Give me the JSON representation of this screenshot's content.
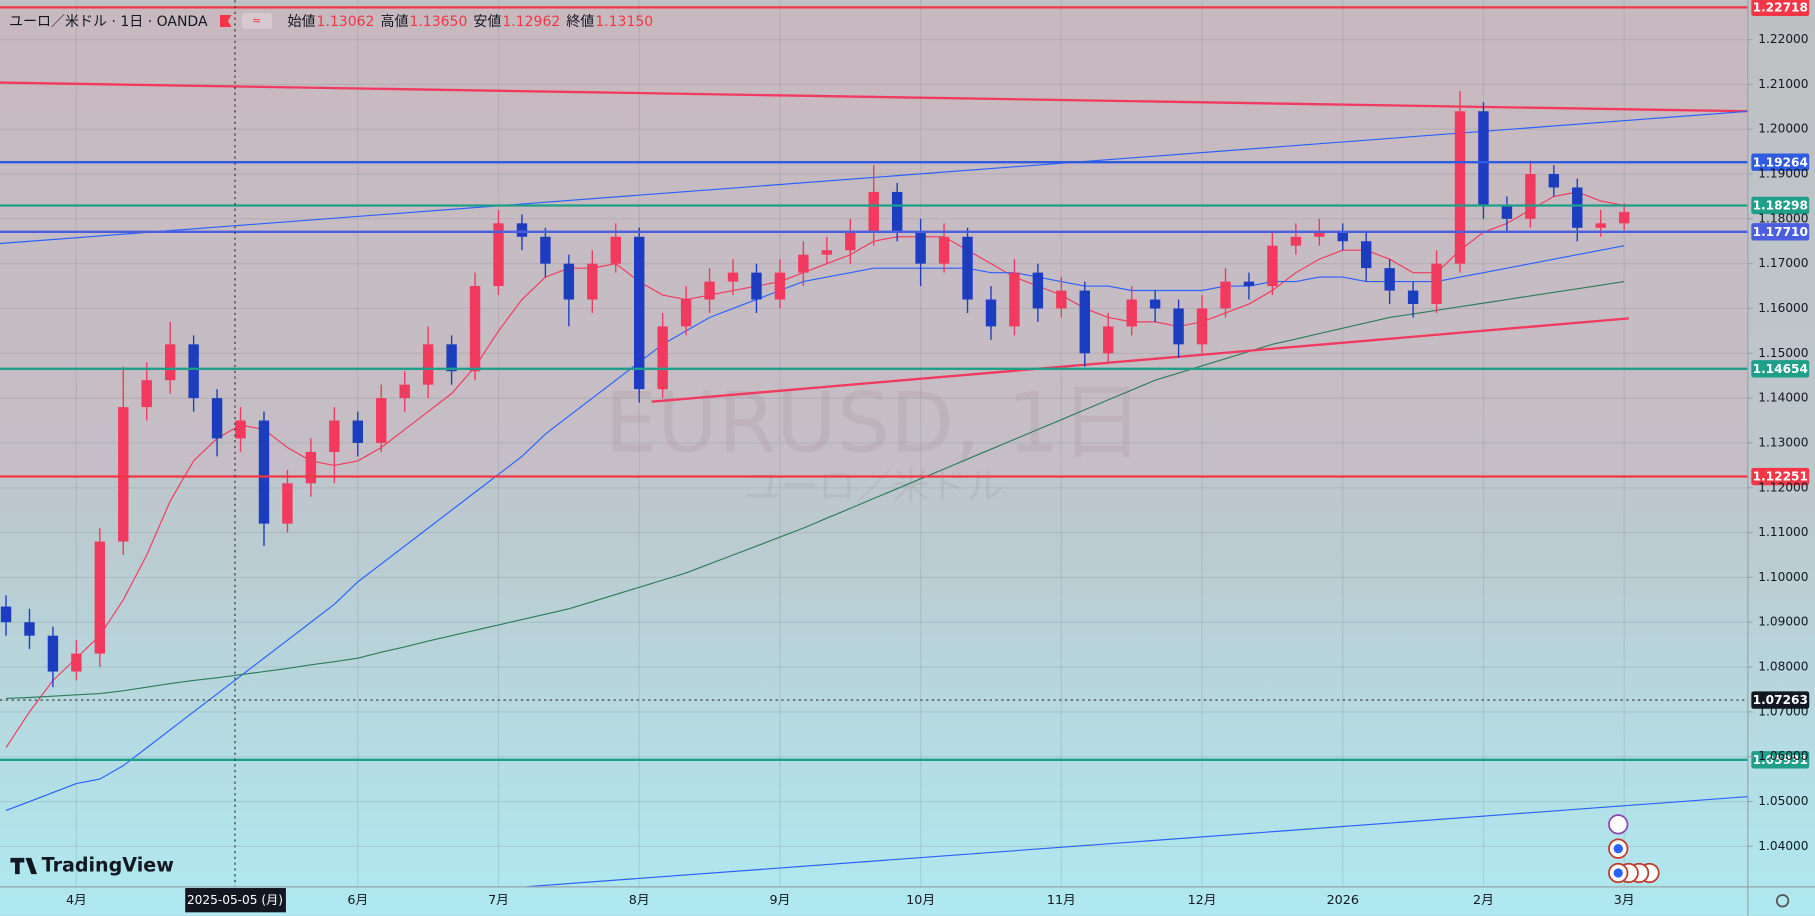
{
  "chart_data": {
    "type": "candlestick",
    "header": {
      "symbol": "ユーロ／米ドル · 1日 · OANDA",
      "ohlc": [
        {
          "label": "始値",
          "value": "1.13062"
        },
        {
          "label": "高値",
          "value": "1.13650"
        },
        {
          "label": "安値",
          "value": "1.12962"
        },
        {
          "label": "終値",
          "value": "1.13150"
        }
      ]
    },
    "watermark": {
      "title": "EURUSD, 1日",
      "subtitle": "ユーロ／米ドル"
    },
    "logo": "TradingView",
    "crosshair": {
      "time_label": "2025-05-05 (月)",
      "price": 1.07263
    },
    "categories": [
      null,
      null,
      null,
      "4月",
      null,
      null,
      null,
      null,
      null,
      null,
      null,
      null,
      null,
      null,
      null,
      "6月",
      null,
      null,
      null,
      null,
      null,
      "7月",
      null,
      null,
      null,
      null,
      null,
      "8月",
      null,
      null,
      null,
      null,
      null,
      "9月",
      null,
      null,
      null,
      null,
      null,
      "10月",
      null,
      null,
      null,
      null,
      null,
      "11月",
      null,
      null,
      null,
      null,
      null,
      "12月",
      null,
      null,
      null,
      null,
      null,
      "2026",
      null,
      null,
      null,
      null,
      null,
      "2月",
      null,
      null,
      null,
      null,
      null,
      "3月"
    ],
    "open": [
      1.0935,
      1.09,
      1.087,
      1.079,
      1.083,
      1.108,
      1.138,
      1.144,
      1.152,
      1.14,
      1.131,
      1.135,
      1.112,
      1.121,
      1.128,
      1.135,
      1.13,
      1.14,
      1.143,
      1.152,
      1.146,
      1.165,
      1.179,
      1.176,
      1.17,
      1.162,
      1.17,
      1.176,
      1.142,
      1.156,
      1.162,
      1.166,
      1.168,
      1.162,
      1.168,
      1.172,
      1.173,
      1.177,
      1.186,
      1.177,
      1.17,
      1.176,
      1.162,
      1.156,
      1.168,
      1.16,
      1.164,
      1.15,
      1.156,
      1.162,
      1.16,
      1.152,
      1.16,
      1.166,
      1.165,
      1.174,
      1.176,
      1.177,
      1.175,
      1.169,
      1.164,
      1.161,
      1.17,
      1.204,
      1.183,
      1.18,
      1.19,
      1.187,
      1.178,
      1.179
    ],
    "high": [
      1.096,
      1.093,
      1.089,
      1.086,
      1.111,
      1.147,
      1.148,
      1.157,
      1.154,
      1.142,
      1.138,
      1.137,
      1.124,
      1.131,
      1.138,
      1.137,
      1.143,
      1.146,
      1.156,
      1.154,
      1.168,
      1.182,
      1.181,
      1.178,
      1.172,
      1.173,
      1.179,
      1.178,
      1.159,
      1.165,
      1.169,
      1.171,
      1.17,
      1.171,
      1.175,
      1.176,
      1.18,
      1.192,
      1.188,
      1.18,
      1.179,
      1.178,
      1.165,
      1.171,
      1.17,
      1.167,
      1.166,
      1.159,
      1.165,
      1.164,
      1.162,
      1.163,
      1.169,
      1.168,
      1.177,
      1.179,
      1.18,
      1.179,
      1.177,
      1.171,
      1.166,
      1.173,
      1.2085,
      1.206,
      1.185,
      1.193,
      1.192,
      1.189,
      1.182,
      1.1835
    ],
    "low": [
      1.087,
      1.084,
      1.0755,
      1.077,
      1.08,
      1.105,
      1.135,
      1.141,
      1.137,
      1.127,
      1.128,
      1.107,
      1.11,
      1.118,
      1.121,
      1.127,
      1.128,
      1.137,
      1.14,
      1.143,
      1.144,
      1.163,
      1.173,
      1.167,
      1.156,
      1.159,
      1.168,
      1.139,
      1.14,
      1.154,
      1.159,
      1.163,
      1.159,
      1.16,
      1.165,
      1.17,
      1.17,
      1.174,
      1.175,
      1.165,
      1.168,
      1.159,
      1.153,
      1.154,
      1.157,
      1.158,
      1.147,
      1.148,
      1.154,
      1.157,
      1.149,
      1.15,
      1.158,
      1.162,
      1.163,
      1.172,
      1.174,
      1.173,
      1.166,
      1.161,
      1.158,
      1.159,
      1.168,
      1.18,
      1.177,
      1.178,
      1.185,
      1.175,
      1.176,
      1.1775
    ],
    "close": [
      1.09,
      1.087,
      1.079,
      1.083,
      1.108,
      1.138,
      1.144,
      1.152,
      1.14,
      1.131,
      1.135,
      1.112,
      1.121,
      1.128,
      1.135,
      1.13,
      1.14,
      1.143,
      1.152,
      1.146,
      1.165,
      1.179,
      1.176,
      1.17,
      1.162,
      1.17,
      1.176,
      1.142,
      1.156,
      1.162,
      1.166,
      1.168,
      1.162,
      1.168,
      1.172,
      1.173,
      1.177,
      1.186,
      1.177,
      1.17,
      1.176,
      1.162,
      1.156,
      1.168,
      1.16,
      1.164,
      1.15,
      1.156,
      1.162,
      1.16,
      1.152,
      1.16,
      1.166,
      1.165,
      1.174,
      1.176,
      1.177,
      1.175,
      1.169,
      1.164,
      1.161,
      1.17,
      1.204,
      1.183,
      1.18,
      1.19,
      1.187,
      1.178,
      1.179,
      1.1815
    ],
    "up_color": "#f23a5e",
    "down_color": "#1c3dbf",
    "moving_averages": [
      {
        "color": "#f23a5e",
        "values": [
          1.062,
          1.07,
          1.077,
          1.082,
          1.087,
          1.095,
          1.105,
          1.117,
          1.126,
          1.131,
          1.134,
          1.133,
          1.129,
          1.126,
          1.125,
          1.126,
          1.129,
          1.133,
          1.137,
          1.141,
          1.147,
          1.155,
          1.162,
          1.167,
          1.169,
          1.169,
          1.17,
          1.166,
          1.163,
          1.162,
          1.163,
          1.164,
          1.165,
          1.166,
          1.168,
          1.17,
          1.172,
          1.175,
          1.176,
          1.176,
          1.176,
          1.173,
          1.17,
          1.167,
          1.165,
          1.163,
          1.16,
          1.158,
          1.157,
          1.157,
          1.156,
          1.157,
          1.159,
          1.161,
          1.164,
          1.168,
          1.171,
          1.173,
          1.173,
          1.171,
          1.168,
          1.168,
          1.173,
          1.177,
          1.179,
          1.182,
          1.185,
          1.186,
          1.184,
          1.183
        ]
      },
      {
        "color": "#2962ff",
        "values": [
          1.048,
          1.05,
          1.052,
          1.054,
          1.055,
          1.058,
          1.062,
          1.066,
          1.07,
          1.074,
          1.078,
          1.082,
          1.086,
          1.09,
          1.094,
          1.099,
          1.103,
          1.107,
          1.111,
          1.115,
          1.119,
          1.123,
          1.127,
          1.132,
          1.136,
          1.14,
          1.144,
          1.148,
          1.152,
          1.155,
          1.158,
          1.16,
          1.162,
          1.164,
          1.166,
          1.167,
          1.168,
          1.169,
          1.169,
          1.169,
          1.169,
          1.169,
          1.168,
          1.168,
          1.167,
          1.166,
          1.165,
          1.165,
          1.164,
          1.164,
          1.164,
          1.164,
          1.165,
          1.165,
          1.166,
          1.166,
          1.167,
          1.167,
          1.166,
          1.166,
          1.166,
          1.166,
          1.167,
          1.168,
          1.169,
          1.17,
          1.171,
          1.172,
          1.173,
          1.174
        ]
      },
      {
        "color": "#2e7d5b",
        "values": [
          1.073,
          1.0732,
          1.0735,
          1.0738,
          1.0741,
          1.0747,
          1.0755,
          1.0763,
          1.077,
          1.0776,
          1.0783,
          1.079,
          1.0797,
          1.0805,
          1.0812,
          1.082,
          1.0833,
          1.0845,
          1.0858,
          1.087,
          1.0882,
          1.0894,
          1.0906,
          1.0918,
          1.093,
          1.0946,
          1.0962,
          1.0978,
          1.0994,
          1.101,
          1.103,
          1.105,
          1.107,
          1.109,
          1.111,
          1.1132,
          1.1154,
          1.1176,
          1.1198,
          1.122,
          1.1242,
          1.1264,
          1.1286,
          1.1308,
          1.133,
          1.1352,
          1.1374,
          1.1396,
          1.1418,
          1.144,
          1.1456,
          1.1472,
          1.1488,
          1.1504,
          1.152,
          1.1532,
          1.1544,
          1.1556,
          1.1568,
          1.158,
          1.1588,
          1.1596,
          1.1604,
          1.1612,
          1.162,
          1.1628,
          1.1636,
          1.1644,
          1.1652,
          1.166
        ]
      }
    ],
    "trend_lines": [
      {
        "color": "#f23a5e",
        "start": [
          -0.26,
          1.2104
        ],
        "end": [
          74.3,
          1.204
        ]
      },
      {
        "color": "#2962ff",
        "start": [
          -0.26,
          1.1745
        ],
        "end": [
          74.3,
          1.204
        ]
      },
      {
        "color": "#f23a5e",
        "start": [
          27.53,
          1.1392
        ],
        "end": [
          69.2,
          1.1578
        ]
      },
      {
        "color": "#2962ff",
        "start": [
          22.2,
          1.031
        ],
        "end": [
          74.3,
          1.0511
        ]
      }
    ],
    "levels": [
      {
        "price": 1.22718,
        "color": "#f23645"
      },
      {
        "price": 1.19264,
        "color": "#2f5be0"
      },
      {
        "price": 1.18298,
        "color": "#1f9e89"
      },
      {
        "price": 1.1771,
        "label": "1.17710",
        "color": "#4a5ee0"
      },
      {
        "price": 1.14654,
        "color": "#1f9e89"
      },
      {
        "price": 1.12251,
        "color": "#f23645"
      },
      {
        "price": 1.05931,
        "color": "#1f9e89"
      }
    ],
    "shaded_zone": {
      "from": 1.22718,
      "to": 1.12251,
      "color": "#e8a0b0"
    },
    "ylim": [
      1.03096,
      1.22878
    ],
    "yticks": [
      {
        "value": 1.04,
        "label": "1.04000"
      },
      {
        "value": 1.05,
        "label": "1.05000"
      },
      {
        "value": 1.06,
        "label": "1.06000"
      },
      {
        "value": 1.07,
        "label": "1.07000"
      },
      {
        "value": 1.08,
        "label": "1.08000"
      },
      {
        "value": 1.09,
        "label": "1.09000"
      },
      {
        "value": 1.1,
        "label": "1.10000"
      },
      {
        "value": 1.11,
        "label": "1.11000"
      },
      {
        "value": 1.12,
        "label": "1.12000"
      },
      {
        "value": 1.13,
        "label": "1.13000"
      },
      {
        "value": 1.14,
        "label": "1.14000"
      },
      {
        "value": 1.15,
        "label": "1.15000"
      },
      {
        "value": 1.16,
        "label": "1.16000"
      },
      {
        "value": 1.17,
        "label": "1.17000"
      },
      {
        "value": 1.18,
        "label": "1.18000"
      },
      {
        "value": 1.19,
        "label": "1.19000"
      },
      {
        "value": 1.2,
        "label": "1.20000"
      },
      {
        "value": 1.21,
        "label": "1.21000"
      },
      {
        "value": 1.22,
        "label": "1.22000"
      }
    ],
    "grid": true
  }
}
